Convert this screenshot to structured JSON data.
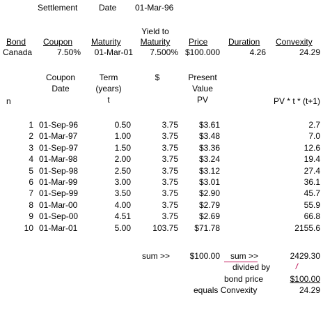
{
  "header": {
    "settlement_label": "Settlement",
    "date_label": "Date",
    "date_value": "01-Mar-96"
  },
  "bond_header": {
    "bond": "Bond",
    "coupon": "Coupon",
    "maturity": "Maturity",
    "ytm_line1": "Yield to",
    "ytm_line2": "Maturity",
    "price": "Price",
    "duration": "Duration",
    "convexity": "Convexity"
  },
  "bond": {
    "name": "Canada",
    "coupon": "7.50%",
    "maturity": "01-Mar-01",
    "ytm": "7.500%",
    "price": "$100.000",
    "duration": "4.26",
    "convexity": "24.29"
  },
  "table_header": {
    "coupon_date_1": "Coupon",
    "coupon_date_2": "Date",
    "term_1": "Term",
    "term_2": "(years)",
    "term_3": "t",
    "dollar": "$",
    "pv_1": "Present",
    "pv_2": "Value",
    "pv_3": "PV",
    "n": "n",
    "pvt": "PV * t * (t+1)"
  },
  "rows": [
    {
      "n": "1",
      "date": "01-Sep-96",
      "t": "0.50",
      "cf": "3.75",
      "pv": "$3.61",
      "pvt": "2.7"
    },
    {
      "n": "2",
      "date": "01-Mar-97",
      "t": "1.00",
      "cf": "3.75",
      "pv": "$3.48",
      "pvt": "7.0"
    },
    {
      "n": "3",
      "date": "01-Sep-97",
      "t": "1.50",
      "cf": "3.75",
      "pv": "$3.36",
      "pvt": "12.6"
    },
    {
      "n": "4",
      "date": "01-Mar-98",
      "t": "2.00",
      "cf": "3.75",
      "pv": "$3.24",
      "pvt": "19.4"
    },
    {
      "n": "5",
      "date": "01-Sep-98",
      "t": "2.50",
      "cf": "3.75",
      "pv": "$3.12",
      "pvt": "27.4"
    },
    {
      "n": "6",
      "date": "01-Mar-99",
      "t": "3.00",
      "cf": "3.75",
      "pv": "$3.01",
      "pvt": "36.1"
    },
    {
      "n": "7",
      "date": "01-Sep-99",
      "t": "3.50",
      "cf": "3.75",
      "pv": "$2.90",
      "pvt": "45.7"
    },
    {
      "n": "8",
      "date": "01-Mar-00",
      "t": "4.00",
      "cf": "3.75",
      "pv": "$2.79",
      "pvt": "55.9"
    },
    {
      "n": "9",
      "date": "01-Sep-00",
      "t": "4.51",
      "cf": "3.75",
      "pv": "$2.69",
      "pvt": "66.8"
    },
    {
      "n": "10",
      "date": "01-Mar-01",
      "t": "5.00",
      "cf": "103.75",
      "pv": "$71.78",
      "pvt": "2155.6"
    }
  ],
  "summary": {
    "sum_label_1": "sum >>",
    "sum_pv": "$100.00",
    "sum_label_2": "sum >>",
    "sum_pvt": "2429.30",
    "divided_by": "divided by",
    "bond_price_label": "bond price",
    "bond_price_value": "$100.00",
    "equals_label": "equals Convexity",
    "convexity_value": "24.29"
  }
}
